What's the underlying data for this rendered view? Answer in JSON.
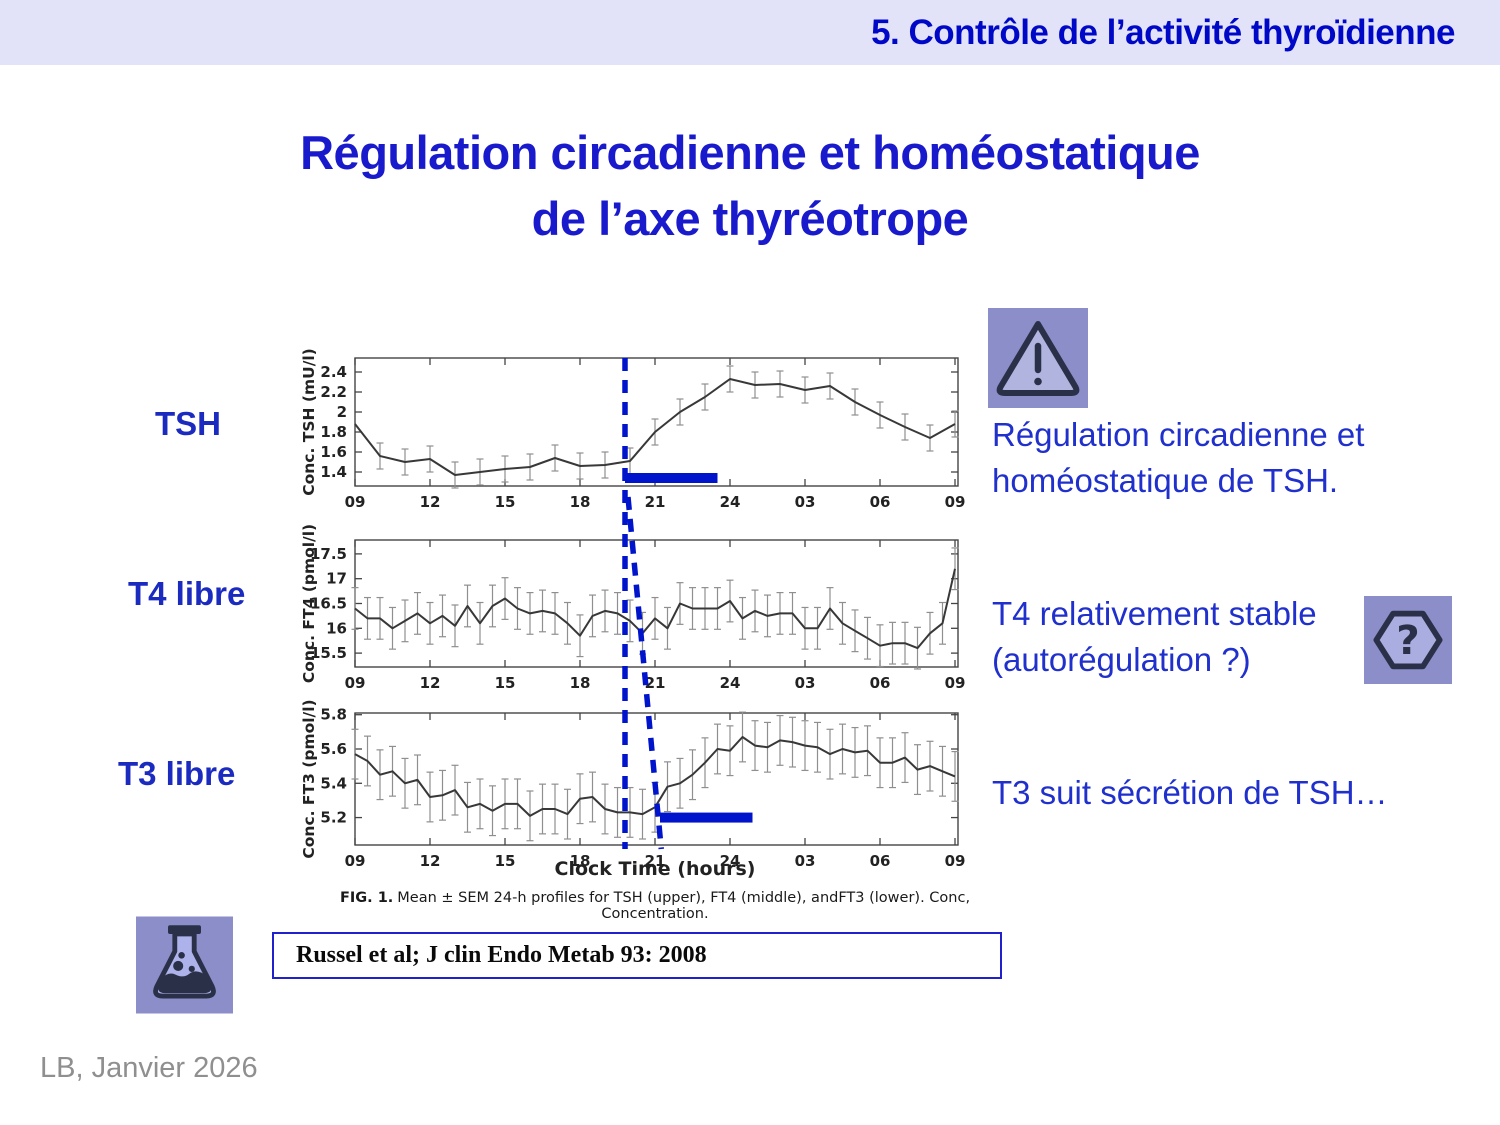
{
  "header": {
    "title": "5. Contrôle de l’activité thyroïdienne"
  },
  "title": {
    "line1": "Régulation circadienne et homéostatique",
    "line2": "de l’axe thyréotrope"
  },
  "row_labels": {
    "tsh": "TSH",
    "t4": "T4 libre",
    "t3": "T3 libre"
  },
  "annotations": {
    "tsh": {
      "line1": "Régulation circadienne et",
      "line2": "homéostatique de TSH."
    },
    "t4": {
      "line1": "T4 relativement stable",
      "line2": "(autorégulation ?)"
    },
    "t3": {
      "line1": "T3 suit sécrétion de TSH…"
    }
  },
  "icons": {
    "warning": "warning-triangle",
    "question": "question-hexagon",
    "flask": "erlenmeyer-flask"
  },
  "figure": {
    "xlabel": "Clock Time (hours)",
    "caption_prefix": "FIG. 1.",
    "caption_text": "Mean ± SEM 24-h profiles for TSH (upper), FT4 (middle), andFT3 (lower). Conc, Concentration.",
    "overlays": {
      "color": "#0014cc",
      "vertical_line": {
        "hour": 19.8
      },
      "slant_line": {
        "top_hour": 19.92,
        "bottom_hour": 21.25
      },
      "bars": [
        {
          "chart_index": 0,
          "from_hour": 19.8,
          "to_hour": 23.5,
          "value": 1.34
        },
        {
          "chart_index": 2,
          "from_hour": 21.2,
          "to_hour": 24.9,
          "value": 5.2
        }
      ]
    }
  },
  "chart_data": [
    {
      "type": "line",
      "name": "TSH",
      "ylabel": "Conc. TSH (mU/l)",
      "x": {
        "start_hour": 9,
        "step_hours": 1,
        "tick_labels": [
          "09",
          "12",
          "15",
          "18",
          "21",
          "24",
          "03",
          "06",
          "09"
        ]
      },
      "y_ticks": [
        "1.4",
        "1.6",
        "1.8",
        "2",
        "2.2",
        "2.4"
      ],
      "ylim": [
        1.26,
        2.54
      ],
      "sem": 0.13,
      "sem_skip": [
        0
      ],
      "values": [
        1.88,
        1.56,
        1.5,
        1.53,
        1.37,
        1.4,
        1.43,
        1.45,
        1.54,
        1.46,
        1.47,
        1.51,
        1.8,
        2.0,
        2.15,
        2.33,
        2.27,
        2.28,
        2.22,
        2.26,
        2.1,
        1.97,
        1.85,
        1.74,
        1.88
      ]
    },
    {
      "type": "line",
      "name": "FT4",
      "ylabel": "Conc. FT4 (pmol/l)",
      "x": {
        "start_hour": 9,
        "step_hours": 0.5,
        "tick_labels": [
          "09",
          "12",
          "15",
          "18",
          "21",
          "24",
          "03",
          "06",
          "09"
        ]
      },
      "y_ticks": [
        "15.5",
        "16",
        "16.5",
        "17",
        "17.5"
      ],
      "ylim": [
        15.22,
        17.78
      ],
      "sem": 0.42,
      "sem_skip": [],
      "values": [
        16.4,
        16.2,
        16.2,
        16.0,
        16.15,
        16.3,
        16.1,
        16.25,
        16.05,
        16.45,
        16.1,
        16.45,
        16.6,
        16.4,
        16.3,
        16.35,
        16.3,
        16.1,
        15.85,
        16.25,
        16.35,
        16.3,
        16.15,
        15.9,
        16.2,
        16.0,
        16.5,
        16.4,
        16.4,
        16.4,
        16.55,
        16.2,
        16.35,
        16.25,
        16.3,
        16.3,
        16.0,
        16.0,
        16.4,
        16.1,
        15.95,
        15.8,
        15.65,
        15.7,
        15.7,
        15.6,
        15.9,
        16.1,
        17.2
      ]
    },
    {
      "type": "line",
      "name": "FT3",
      "ylabel": "Conc. FT3 (pmol/l)",
      "x": {
        "start_hour": 9,
        "step_hours": 0.5,
        "tick_labels": [
          "09",
          "12",
          "15",
          "18",
          "21",
          "24",
          "03",
          "06",
          "09"
        ]
      },
      "y_ticks": [
        "5.2",
        "5.4",
        "5.6",
        "5.8"
      ],
      "ylim": [
        5.04,
        5.81
      ],
      "sem": 0.145,
      "sem_skip": [],
      "values": [
        5.57,
        5.53,
        5.45,
        5.47,
        5.4,
        5.42,
        5.32,
        5.33,
        5.36,
        5.26,
        5.28,
        5.24,
        5.28,
        5.28,
        5.21,
        5.25,
        5.25,
        5.22,
        5.31,
        5.32,
        5.25,
        5.23,
        5.23,
        5.22,
        5.26,
        5.38,
        5.4,
        5.45,
        5.52,
        5.6,
        5.59,
        5.67,
        5.62,
        5.61,
        5.65,
        5.64,
        5.62,
        5.61,
        5.57,
        5.6,
        5.58,
        5.59,
        5.52,
        5.52,
        5.55,
        5.48,
        5.5,
        5.47,
        5.44
      ]
    }
  ],
  "citation": {
    "text": "Russel et al; J clin Endo Metab 93: 2008"
  },
  "footer": {
    "text": "LB, Janvier 2026"
  },
  "colors": {
    "header_bg": "#e2e2f8",
    "header_text": "#0008c8",
    "title_text": "#1a1acd",
    "body_blue": "#2030cd",
    "icon_bg": "#8b8ec8",
    "icon_fill": "#b0b4de",
    "icon_stroke": "#2b3049",
    "overlay_blue": "#0014cc",
    "citation_border": "#2020cc",
    "footer_gray": "#8f8f8f"
  }
}
